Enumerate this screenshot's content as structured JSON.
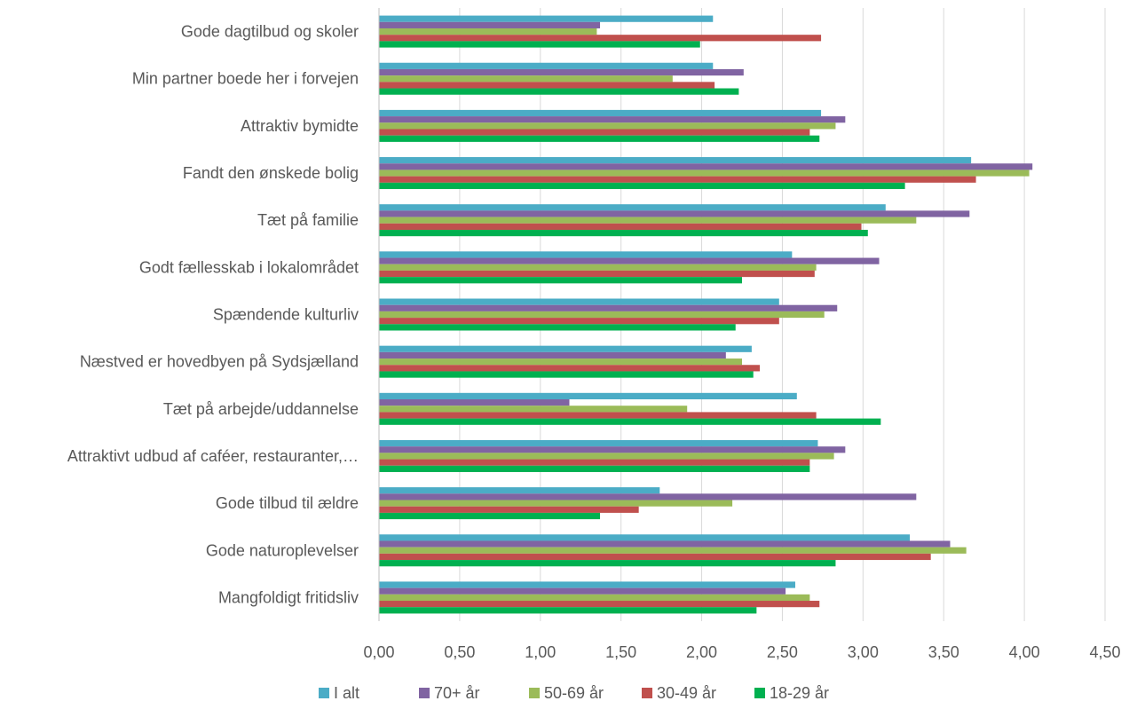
{
  "chart_data": {
    "type": "bar",
    "orientation": "horizontal",
    "categories": [
      "Gode dagtilbud og skoler",
      "Min partner boede her i forvejen",
      "Attraktiv bymidte",
      "Fandt den ønskede bolig",
      "Tæt på familie",
      "Godt fællesskab i lokalområdet",
      "Spændende kulturliv",
      "Næstved er hovedbyen på Sydsjælland",
      "Tæt på arbejde/uddannelse",
      "Attraktivt udbud af caféer, restauranter,…",
      "Gode tilbud til ældre",
      "Gode naturoplevelser",
      "Mangfoldigt fritidsliv"
    ],
    "series": [
      {
        "name": "I alt",
        "color": "#4bacc6",
        "values": [
          2.07,
          2.07,
          2.74,
          3.67,
          3.14,
          2.56,
          2.48,
          2.31,
          2.59,
          2.72,
          1.74,
          3.29,
          2.58
        ]
      },
      {
        "name": "70+ år",
        "color": "#8064a2",
        "values": [
          1.37,
          2.26,
          2.89,
          4.05,
          3.66,
          3.1,
          2.84,
          2.15,
          1.18,
          2.89,
          3.33,
          3.54,
          2.52
        ]
      },
      {
        "name": "50-69 år",
        "color": "#9bbb59",
        "values": [
          1.35,
          1.82,
          2.83,
          4.03,
          3.33,
          2.71,
          2.76,
          2.25,
          1.91,
          2.82,
          2.19,
          3.64,
          2.67
        ]
      },
      {
        "name": "30-49 år",
        "color": "#c0504d",
        "values": [
          2.74,
          2.08,
          2.67,
          3.7,
          2.99,
          2.7,
          2.48,
          2.36,
          2.71,
          2.67,
          1.61,
          3.42,
          2.73
        ]
      },
      {
        "name": "18-29 år",
        "color": "#00b050",
        "values": [
          1.99,
          2.23,
          2.73,
          3.26,
          3.03,
          2.25,
          2.21,
          2.32,
          3.11,
          2.67,
          1.37,
          2.83,
          2.34
        ]
      }
    ],
    "xlim": [
      0,
      4.5
    ],
    "xticks": [
      "0,00",
      "0,50",
      "1,00",
      "1,50",
      "2,00",
      "2,50",
      "3,00",
      "3,50",
      "4,00",
      "4,50"
    ],
    "xtick_values": [
      0,
      0.5,
      1.0,
      1.5,
      2.0,
      2.5,
      3.0,
      3.5,
      4.0,
      4.5
    ],
    "grid": true,
    "legend_position": "bottom",
    "title": "",
    "xlabel": "",
    "ylabel": ""
  }
}
